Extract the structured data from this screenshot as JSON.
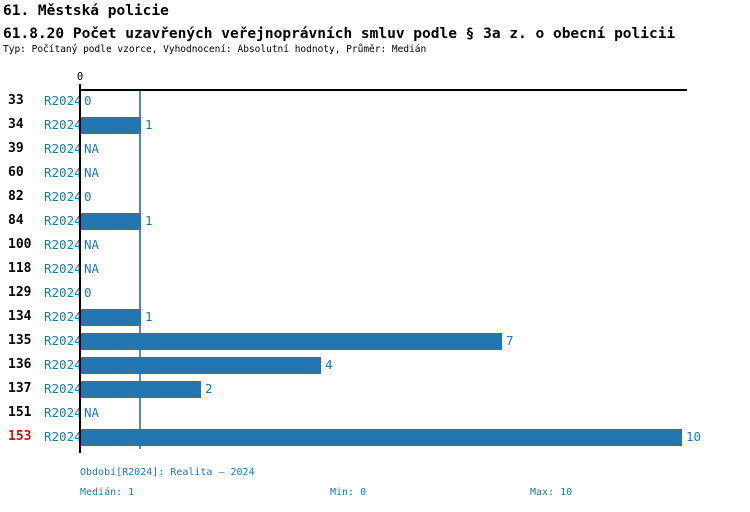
{
  "header": {
    "title_line1": "61. Městská policie",
    "title_line2": "61.8.20 Počet uzavřených veřejnoprávních smluv podle § 3a z. o obecní policii",
    "subtitle": "Typ: Počítaný podle vzorce, Vyhodnocení: Absolutní hodnoty, Průměr: Medián"
  },
  "chart_data": {
    "type": "bar",
    "orientation": "horizontal",
    "period": "R2024",
    "categories": [
      "33",
      "34",
      "39",
      "60",
      "82",
      "84",
      "100",
      "118",
      "129",
      "134",
      "135",
      "136",
      "137",
      "151",
      "153"
    ],
    "values": [
      0,
      1,
      null,
      null,
      0,
      1,
      null,
      null,
      0,
      1,
      7,
      4,
      2,
      null,
      10
    ],
    "value_labels": [
      "0",
      "1",
      "NA",
      "NA",
      "0",
      "1",
      "NA",
      "NA",
      "0",
      "1",
      "7",
      "4",
      "2",
      "NA",
      "10"
    ],
    "highlighted_category": "153",
    "xlim": [
      0,
      10
    ],
    "x_axis_tick_label": "0",
    "median_line_value": 1,
    "median": 1,
    "min": 0,
    "max": 10,
    "grid": false,
    "colors": {
      "bar": "#2276b1",
      "blue_text": "#2277b4",
      "highlight_text": "#cc1111",
      "median_line": "#4a8fba",
      "axis": "#000000"
    }
  },
  "footer": {
    "period_line": "Období[R2024]: Realita – 2024",
    "median_label": "Medián: 1",
    "min_label": "Min: 0",
    "max_label": "Max: 10"
  }
}
